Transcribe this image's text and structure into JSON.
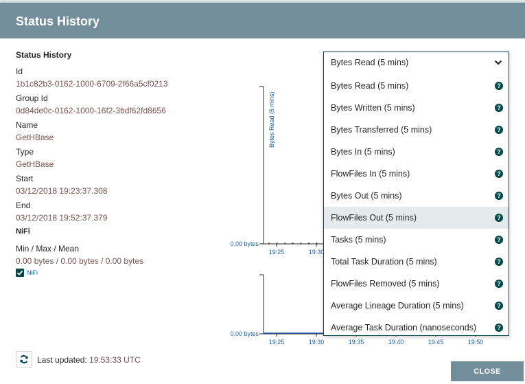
{
  "dialog": {
    "title": "Status History",
    "close_label": "CLOSE",
    "last_updated_label": "Last updated:",
    "last_updated_value": "19:53:33 UTC"
  },
  "details": {
    "section_title": "Status History",
    "fields": [
      {
        "label": "Id",
        "value": "1b1c82b3-0162-1000-6709-2f66a5cf0213"
      },
      {
        "label": "Group Id",
        "value": "0d84de0c-0162-1000-16f2-3bdf62fd8656"
      },
      {
        "label": "Name",
        "value": "GetHBase"
      },
      {
        "label": "Type",
        "value": "GetHBase"
      },
      {
        "label": "Start",
        "value": "03/12/2018 19:23:37.308"
      },
      {
        "label": "End",
        "value": "03/12/2018 19:52:37.379"
      }
    ],
    "nifi": {
      "title": "NiFi",
      "stat_label": "Min / Max / Mean",
      "stat_value": "0.00 bytes / 0.00 bytes / 0.00 bytes",
      "checkbox_label": "NiFi",
      "checkbox_checked": true
    }
  },
  "metric_select": {
    "selected": "Bytes Read (5 mins)",
    "highlighted_index": 6,
    "options": [
      "Bytes Read (5 mins)",
      "Bytes Written (5 mins)",
      "Bytes Transferred (5 mins)",
      "Bytes In (5 mins)",
      "FlowFiles In (5 mins)",
      "Bytes Out (5 mins)",
      "FlowFiles Out (5 mins)",
      "Tasks (5 mins)",
      "Total Task Duration (5 mins)",
      "FlowFiles Removed (5 mins)",
      "Average Lineage Duration (5 mins)",
      "Average Task Duration (nanoseconds)"
    ]
  },
  "colors": {
    "header": "#728e9b",
    "value_text": "#775351",
    "accent": "#004849",
    "axis": "#262626",
    "series_line": "#1f5ea8"
  },
  "chart_data": [
    {
      "type": "line",
      "ylabel": "Bytes Read (5 mins)",
      "ytick_labels": [
        "0.00 bytes"
      ],
      "xtick_labels": [
        "19:25",
        "19:30"
      ],
      "series": [
        {
          "x": [
            "19:24",
            "19:25",
            "19:26",
            "19:27",
            "19:28",
            "19:29",
            "19:30",
            "19:31"
          ],
          "values": [
            0,
            0,
            0,
            0,
            0,
            0,
            0,
            0
          ]
        }
      ]
    },
    {
      "type": "line",
      "ytick_labels": [
        "0.00 bytes"
      ],
      "xtick_labels": [
        "19:25",
        "19:30",
        "19:35",
        "19:40",
        "19:45",
        "19:50"
      ],
      "series": [
        {
          "x": [
            "19:23",
            "19:52"
          ],
          "values": [
            0,
            0
          ]
        }
      ]
    }
  ]
}
